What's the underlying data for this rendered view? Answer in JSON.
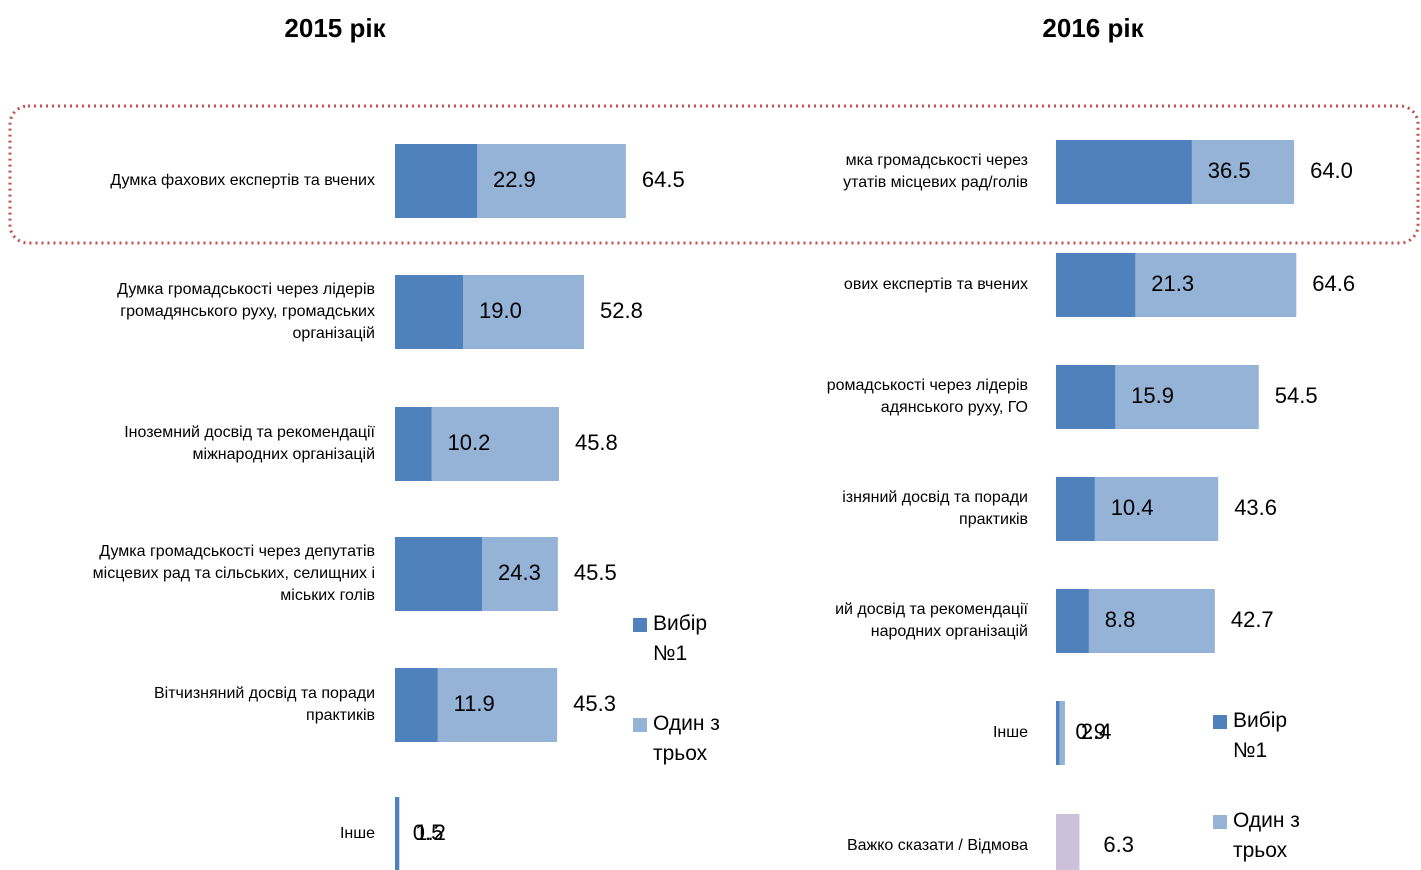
{
  "chart_data": [
    {
      "type": "bar",
      "orientation": "horizontal",
      "overlap": true,
      "title": "2015 рік",
      "categories": [
        "Думка фахових експертів та вчених",
        "Думка громадськості через лідерів\nгромадянського руху, громадських\nорганізацій",
        "Іноземний досвід та рекомендації\nміжнародних організацій",
        "Думка громадськості через депутатів\nмісцевих рад та сільських, селищних і\nміських голів",
        "Вітчизняний досвід та поради\nпрактиків",
        "Інше"
      ],
      "series": [
        {
          "name": "Вибір\n№1",
          "color": "#4f81bd",
          "values": [
            22.9,
            19.0,
            10.2,
            24.3,
            11.9,
            1.2
          ],
          "value_labels": [
            "22.9",
            "19.0",
            "10.2",
            "24.3",
            "11.9",
            "1.2"
          ]
        },
        {
          "name": "Один з\nтрьох",
          "color": "#95b3d7",
          "values": [
            64.5,
            52.8,
            45.8,
            45.5,
            45.3,
            0.5
          ]
        }
      ],
      "xlim": [
        0,
        100
      ]
    },
    {
      "type": "bar",
      "orientation": "horizontal",
      "overlap": true,
      "title": "2016 рік",
      "categories": [
        "мка громадськості через\nутатів місцевих рад/голів",
        "ових експертів та вчених",
        "ромадськості через лідерів\nадянського руху, ГО",
        "ізняний досвід та поради\nпрактиків",
        "ий досвід та рекомендації\nнародних організацій",
        "Інше",
        "Важко сказати / Відмова"
      ],
      "series": [
        {
          "name": "Вибір\n№1",
          "color": "#4f81bd",
          "values": [
            36.5,
            21.3,
            15.9,
            10.4,
            8.8,
            0.9,
            null
          ]
        },
        {
          "name": "Один з\nтрьох",
          "color": "#95b3d7",
          "values": [
            64.0,
            64.6,
            54.5,
            43.6,
            42.7,
            2.4,
            6.3
          ],
          "colors": [
            null,
            null,
            null,
            null,
            null,
            null,
            "#ccc0da"
          ]
        }
      ],
      "xlim": [
        0,
        100
      ]
    }
  ]
}
